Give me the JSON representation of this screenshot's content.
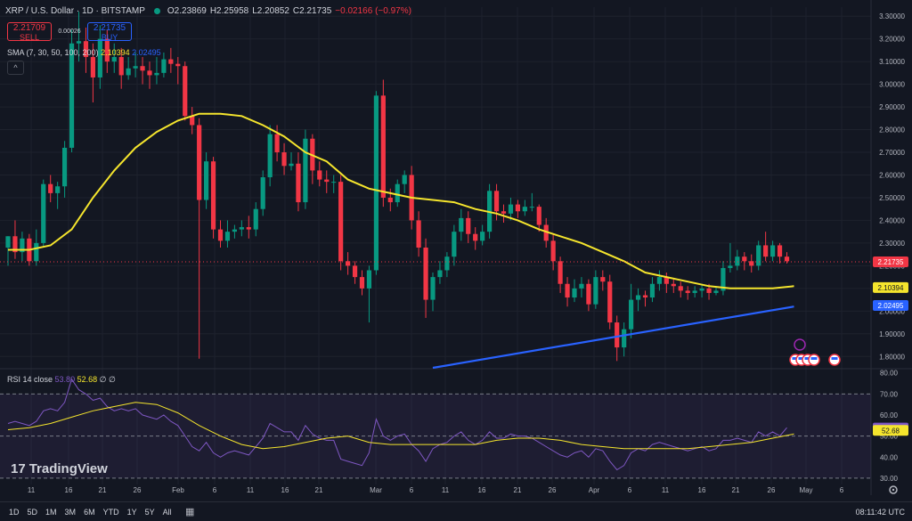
{
  "header": {
    "symbol": "XRP / U.S. Dollar · 1D · BITSTAMP",
    "open": "O2.23869",
    "high": "H2.25958",
    "low": "L2.20852",
    "close": "C2.21735",
    "change": "−0.02166 (−0.97%)"
  },
  "trade": {
    "sell_price": "2.21709",
    "sell_label": "SELL",
    "spread": "0.00026",
    "buy_price": "2.21735",
    "buy_label": "BUY"
  },
  "sma_legend": {
    "label": "SMA (7, 30, 50, 100, 200)",
    "v1": "2.10394",
    "v2": "2.02495"
  },
  "rsi_legend": {
    "label": "RSI 14 close",
    "v1": "53.80",
    "v2": "52.68",
    "extra": "∅ ∅"
  },
  "logo": {
    "text": "TradingView"
  },
  "bottombar": {
    "ranges": [
      "1D",
      "5D",
      "1M",
      "3M",
      "6M",
      "YTD",
      "1Y",
      "5Y",
      "All"
    ],
    "clock": "08:11:42 UTC"
  },
  "colors": {
    "up": "#089981",
    "down": "#f23645",
    "sma_yellow": "#f5e52d",
    "sma_blue": "#2962ff",
    "rsi": "#7e57c2"
  },
  "chart_data": {
    "type": "candlestick",
    "price_ticks": [
      "3.30000",
      "3.20000",
      "3.10000",
      "3.00000",
      "2.90000",
      "2.80000",
      "2.70000",
      "2.60000",
      "2.50000",
      "2.40000",
      "2.30000",
      "2.20000",
      "2.10000",
      "2.00000",
      "1.90000",
      "1.80000"
    ],
    "price_range": [
      1.75,
      3.34
    ],
    "rsi_ticks": [
      "80.00",
      "70.00",
      "60.00",
      "50.00",
      "40.00",
      "30.00"
    ],
    "rsi_range": [
      27,
      82
    ],
    "x_labels": [
      "11",
      "16",
      "21",
      "26",
      "Feb",
      "6",
      "11",
      "16",
      "21",
      "Mar",
      "6",
      "11",
      "16",
      "21",
      "26",
      "Apr",
      "6",
      "11",
      "16",
      "21",
      "26",
      "May",
      "6"
    ],
    "last_price_label": "2.21735",
    "sma1_label": "2.10394",
    "sma2_label": "2.02495",
    "rsi_label": "53.80",
    "rsi_ma_label": "52.68",
    "candles": [
      [
        2.28,
        2.33,
        2.22,
        2.2
      ],
      [
        2.33,
        2.26,
        2.4,
        2.23
      ],
      [
        2.26,
        2.32,
        2.35,
        2.22
      ],
      [
        2.32,
        2.22,
        2.34,
        2.2
      ],
      [
        2.22,
        2.3,
        2.36,
        2.2
      ],
      [
        2.3,
        2.56,
        2.58,
        2.28
      ],
      [
        2.56,
        2.52,
        2.6,
        2.48
      ],
      [
        2.52,
        2.55,
        2.57,
        2.45
      ],
      [
        2.55,
        2.72,
        2.75,
        2.5
      ],
      [
        2.72,
        3.18,
        3.24,
        2.7
      ],
      [
        3.18,
        3.19,
        3.32,
        3.1
      ],
      [
        3.19,
        3.12,
        3.25,
        3.05
      ],
      [
        3.12,
        3.03,
        3.18,
        2.92
      ],
      [
        3.03,
        3.2,
        3.26,
        2.98
      ],
      [
        3.2,
        3.1,
        3.24,
        3.05
      ],
      [
        3.1,
        3.12,
        3.18,
        3.05
      ],
      [
        3.12,
        3.04,
        3.16,
        2.98
      ],
      [
        3.04,
        3.07,
        3.12,
        3.02
      ],
      [
        3.07,
        3.08,
        3.14,
        3.03
      ],
      [
        3.08,
        3.06,
        3.12,
        3.0
      ],
      [
        3.06,
        3.04,
        3.1,
        2.98
      ],
      [
        3.04,
        3.05,
        3.12,
        3.0
      ],
      [
        3.05,
        3.11,
        3.14,
        3.03
      ],
      [
        3.11,
        3.09,
        3.16,
        3.05
      ],
      [
        3.09,
        3.08,
        3.12,
        3.0
      ],
      [
        3.08,
        2.86,
        3.1,
        2.84
      ],
      [
        2.86,
        2.82,
        2.9,
        2.78
      ],
      [
        2.82,
        2.49,
        2.85,
        1.79
      ],
      [
        2.49,
        2.66,
        2.7,
        2.45
      ],
      [
        2.66,
        2.36,
        2.68,
        2.32
      ],
      [
        2.36,
        2.31,
        2.4,
        2.28
      ],
      [
        2.31,
        2.35,
        2.4,
        2.28
      ],
      [
        2.35,
        2.36,
        2.38,
        2.32
      ],
      [
        2.36,
        2.37,
        2.4,
        2.33
      ],
      [
        2.37,
        2.36,
        2.42,
        2.32
      ],
      [
        2.36,
        2.45,
        2.48,
        2.33
      ],
      [
        2.45,
        2.59,
        2.62,
        2.42
      ],
      [
        2.59,
        2.78,
        2.82,
        2.55
      ],
      [
        2.78,
        2.7,
        2.82,
        2.66
      ],
      [
        2.7,
        2.64,
        2.74,
        2.6
      ],
      [
        2.64,
        2.65,
        2.7,
        2.62
      ],
      [
        2.65,
        2.48,
        2.7,
        2.44
      ],
      [
        2.48,
        2.76,
        2.8,
        2.45
      ],
      [
        2.76,
        2.62,
        2.78,
        2.56
      ],
      [
        2.62,
        2.58,
        2.66,
        2.55
      ],
      [
        2.58,
        2.57,
        2.62,
        2.52
      ],
      [
        2.57,
        2.57,
        2.6,
        2.52
      ],
      [
        2.57,
        2.22,
        2.6,
        2.18
      ],
      [
        2.22,
        2.2,
        2.26,
        2.16
      ],
      [
        2.2,
        2.15,
        2.22,
        2.12
      ],
      [
        2.15,
        2.1,
        2.18,
        2.07
      ],
      [
        2.1,
        2.18,
        2.2,
        1.95
      ],
      [
        2.18,
        2.95,
        2.97,
        2.16
      ],
      [
        2.95,
        2.5,
        3.02,
        2.46
      ],
      [
        2.5,
        2.48,
        2.54,
        2.44
      ],
      [
        2.48,
        2.56,
        2.58,
        2.46
      ],
      [
        2.56,
        2.6,
        2.62,
        2.52
      ],
      [
        2.6,
        2.4,
        2.64,
        2.36
      ],
      [
        2.4,
        2.28,
        2.44,
        2.24
      ],
      [
        2.28,
        2.05,
        2.32,
        1.97
      ],
      [
        2.05,
        2.15,
        2.17,
        2.0
      ],
      [
        2.15,
        2.18,
        2.22,
        2.12
      ],
      [
        2.18,
        2.24,
        2.26,
        2.15
      ],
      [
        2.24,
        2.35,
        2.38,
        2.2
      ],
      [
        2.35,
        2.41,
        2.45,
        2.31
      ],
      [
        2.41,
        2.34,
        2.44,
        2.3
      ],
      [
        2.34,
        2.31,
        2.37,
        2.27
      ],
      [
        2.31,
        2.35,
        2.38,
        2.29
      ],
      [
        2.35,
        2.53,
        2.56,
        2.32
      ],
      [
        2.53,
        2.44,
        2.56,
        2.4
      ],
      [
        2.44,
        2.43,
        2.47,
        2.39
      ],
      [
        2.43,
        2.47,
        2.5,
        2.4
      ],
      [
        2.47,
        2.44,
        2.49,
        2.41
      ],
      [
        2.44,
        2.46,
        2.49,
        2.42
      ],
      [
        2.46,
        2.46,
        2.52,
        2.44
      ],
      [
        2.46,
        2.38,
        2.47,
        2.35
      ],
      [
        2.38,
        2.31,
        2.41,
        2.28
      ],
      [
        2.31,
        2.22,
        2.34,
        2.18
      ],
      [
        2.22,
        2.12,
        2.24,
        2.08
      ],
      [
        2.12,
        2.06,
        2.15,
        2.02
      ],
      [
        2.06,
        2.1,
        2.14,
        2.04
      ],
      [
        2.1,
        2.12,
        2.15,
        2.06
      ],
      [
        2.12,
        2.03,
        2.14,
        2.0
      ],
      [
        2.03,
        2.15,
        2.18,
        2.01
      ],
      [
        2.15,
        2.13,
        2.18,
        2.09
      ],
      [
        2.13,
        1.95,
        2.16,
        1.92
      ],
      [
        1.95,
        1.84,
        1.98,
        1.78
      ],
      [
        1.84,
        1.92,
        1.95,
        1.8
      ],
      [
        1.92,
        2.05,
        2.12,
        1.88
      ],
      [
        2.05,
        2.07,
        2.1,
        2.0
      ],
      [
        2.07,
        2.06,
        2.09,
        2.02
      ],
      [
        2.06,
        2.12,
        2.15,
        2.04
      ],
      [
        2.12,
        2.15,
        2.18,
        2.09
      ],
      [
        2.15,
        2.12,
        2.17,
        2.08
      ],
      [
        2.12,
        2.11,
        2.14,
        2.08
      ],
      [
        2.11,
        2.09,
        2.13,
        2.06
      ],
      [
        2.09,
        2.08,
        2.11,
        2.05
      ],
      [
        2.08,
        2.09,
        2.11,
        2.06
      ],
      [
        2.09,
        2.1,
        2.12,
        2.06
      ],
      [
        2.1,
        2.08,
        2.12,
        2.05
      ],
      [
        2.08,
        2.09,
        2.11,
        2.07
      ],
      [
        2.09,
        2.19,
        2.22,
        2.07
      ],
      [
        2.19,
        2.2,
        2.3,
        2.17
      ],
      [
        2.2,
        2.24,
        2.27,
        2.18
      ],
      [
        2.24,
        2.22,
        2.26,
        2.18
      ],
      [
        2.22,
        2.2,
        2.25,
        2.17
      ],
      [
        2.2,
        2.29,
        2.31,
        2.18
      ],
      [
        2.29,
        2.24,
        2.35,
        2.22
      ],
      [
        2.24,
        2.29,
        2.31,
        2.22
      ],
      [
        2.29,
        2.24,
        2.3,
        2.21
      ],
      [
        2.24,
        2.22,
        2.26,
        2.21
      ]
    ],
    "rsi": [
      56,
      57,
      56,
      55,
      57,
      62,
      63,
      62,
      66,
      77,
      72,
      70,
      67,
      68,
      64,
      62,
      63,
      62,
      63,
      60,
      59,
      58,
      60,
      57,
      55,
      50,
      45,
      43,
      47,
      42,
      40,
      42,
      43,
      42,
      41,
      45,
      49,
      56,
      54,
      52,
      52,
      48,
      55,
      51,
      49,
      48,
      48,
      39,
      38,
      37,
      36,
      42,
      58,
      50,
      48,
      50,
      51,
      46,
      43,
      38,
      44,
      46,
      47,
      50,
      52,
      48,
      46,
      48,
      52,
      49,
      49,
      51,
      50,
      50,
      49,
      47,
      45,
      43,
      41,
      40,
      42,
      43,
      40,
      44,
      43,
      38,
      34,
      36,
      42,
      44,
      43,
      46,
      47,
      46,
      45,
      44,
      43,
      44,
      45,
      43,
      44,
      48,
      48,
      49,
      48,
      47,
      52,
      50,
      52,
      50,
      54
    ],
    "sma1": [
      [
        0,
        2.27
      ],
      [
        3,
        2.27
      ],
      [
        6,
        2.29
      ],
      [
        9,
        2.36
      ],
      [
        12,
        2.5
      ],
      [
        15,
        2.62
      ],
      [
        18,
        2.72
      ],
      [
        21,
        2.79
      ],
      [
        24,
        2.84
      ],
      [
        27,
        2.87
      ],
      [
        30,
        2.87
      ],
      [
        33,
        2.86
      ],
      [
        36,
        2.82
      ],
      [
        39,
        2.77
      ],
      [
        42,
        2.7
      ],
      [
        45,
        2.66
      ],
      [
        48,
        2.58
      ],
      [
        51,
        2.54
      ],
      [
        54,
        2.52
      ],
      [
        57,
        2.5
      ],
      [
        60,
        2.49
      ],
      [
        63,
        2.48
      ],
      [
        66,
        2.45
      ],
      [
        69,
        2.43
      ],
      [
        72,
        2.4
      ],
      [
        75,
        2.36
      ],
      [
        78,
        2.33
      ],
      [
        81,
        2.3
      ],
      [
        84,
        2.26
      ],
      [
        87,
        2.22
      ],
      [
        90,
        2.17
      ],
      [
        93,
        2.15
      ],
      [
        96,
        2.13
      ],
      [
        99,
        2.11
      ],
      [
        102,
        2.1
      ],
      [
        105,
        2.1
      ],
      [
        108,
        2.1
      ],
      [
        111,
        2.11
      ]
    ],
    "sma2": [
      [
        60,
        1.75
      ],
      [
        111,
        2.02
      ]
    ],
    "rsi_ma": [
      [
        0,
        53
      ],
      [
        3,
        54
      ],
      [
        6,
        56
      ],
      [
        9,
        59
      ],
      [
        12,
        62
      ],
      [
        15,
        64
      ],
      [
        18,
        66
      ],
      [
        21,
        65
      ],
      [
        24,
        61
      ],
      [
        27,
        55
      ],
      [
        30,
        50
      ],
      [
        33,
        46
      ],
      [
        36,
        44
      ],
      [
        39,
        45
      ],
      [
        42,
        47
      ],
      [
        45,
        49
      ],
      [
        48,
        50
      ],
      [
        51,
        47
      ],
      [
        54,
        46
      ],
      [
        57,
        46
      ],
      [
        60,
        46
      ],
      [
        63,
        46
      ],
      [
        66,
        46
      ],
      [
        69,
        48
      ],
      [
        72,
        49
      ],
      [
        75,
        49
      ],
      [
        78,
        48
      ],
      [
        81,
        46
      ],
      [
        84,
        45
      ],
      [
        87,
        44
      ],
      [
        90,
        44
      ],
      [
        93,
        44
      ],
      [
        96,
        44
      ],
      [
        99,
        45
      ],
      [
        102,
        46
      ],
      [
        105,
        47
      ],
      [
        108,
        49
      ],
      [
        111,
        51
      ]
    ]
  }
}
